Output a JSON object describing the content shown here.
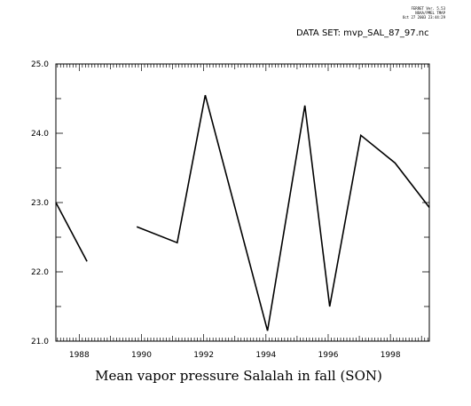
{
  "header": {
    "line1": "FERRET Ver. 5.53",
    "line2": "NOAA/PMEL TMAP",
    "line3": "Oct 27 2003 23:44:29",
    "dataset": "DATA SET: mvp_SAL_87_97.nc"
  },
  "chart_data": {
    "type": "line",
    "title": "",
    "xlabel": "Mean vapor pressure Salalah in fall (SON)",
    "ylabel": "",
    "xlim": [
      1987.25,
      1999.25
    ],
    "ylim": [
      21.0,
      25.0
    ],
    "x_ticks": [
      1988,
      1990,
      1992,
      1994,
      1996,
      1998
    ],
    "x_tick_labels": [
      "1988",
      "1990",
      "1992",
      "1994",
      "1996",
      "1998"
    ],
    "y_ticks": [
      21.0,
      22.0,
      23.0,
      24.0,
      25.0
    ],
    "y_tick_labels": [
      "21.0",
      "22.0",
      "23.0",
      "24.0",
      "25.0"
    ],
    "grid": false,
    "series": [
      {
        "color": "#000000",
        "segments": [
          [
            [
              1987.25,
              23.0
            ],
            [
              1988.25,
              22.15
            ]
          ],
          [
            [
              1989.85,
              22.65
            ],
            [
              1991.15,
              22.42
            ],
            [
              1992.05,
              24.55
            ],
            [
              1994.05,
              21.15
            ],
            [
              1995.25,
              24.4
            ],
            [
              1996.05,
              21.5
            ],
            [
              1997.05,
              23.97
            ],
            [
              1998.15,
              23.57
            ],
            [
              1999.25,
              22.93
            ]
          ]
        ]
      }
    ]
  }
}
